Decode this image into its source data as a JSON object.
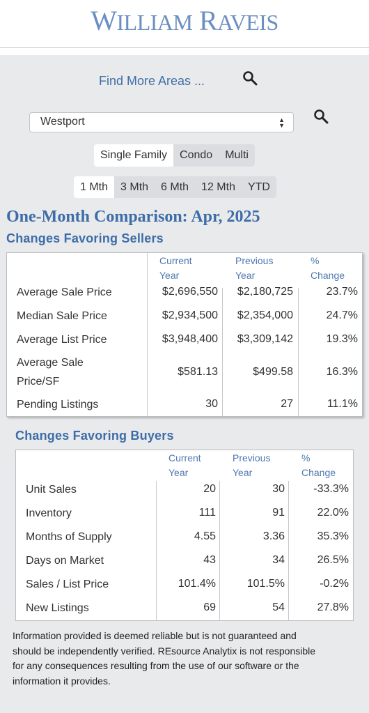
{
  "brand": {
    "logo_big1": "W",
    "logo_small1": "ILLIAM",
    "logo_big2": " R",
    "logo_small2": "AVEIS"
  },
  "search": {
    "find_more_link": "Find More Areas ...",
    "area_select_value": "Westport"
  },
  "property_types": [
    "Single Family",
    "Condo",
    "Multi"
  ],
  "property_type_selected": "Single Family",
  "periods": [
    "1 Mth",
    "3 Mth",
    "6 Mth",
    "12 Mth",
    "YTD"
  ],
  "period_selected": "1 Mth",
  "comparison_title": "One-Month Comparison:  Apr, 2025",
  "sellers": {
    "title": "Changes Favoring Sellers",
    "headers": [
      "Current",
      "Year",
      "Previous",
      "Year",
      "%",
      "Change"
    ],
    "rows": [
      {
        "label": "Average Sale Price",
        "current": "$2,696,550",
        "previous": "$2,180,725",
        "change": "23.7%"
      },
      {
        "label": "Median Sale Price",
        "current": "$2,934,500",
        "previous": "$2,354,000",
        "change": "24.7%"
      },
      {
        "label": "Average List Price",
        "current": "$3,948,400",
        "previous": "$3,309,142",
        "change": "19.3%"
      },
      {
        "label_line1": "Average Sale",
        "label_line2": "Price/SF",
        "current": "$581.13",
        "previous": "$499.58",
        "change": "16.3%"
      },
      {
        "label": "Pending Listings",
        "current": "30",
        "previous": "27",
        "change": "11.1%"
      }
    ]
  },
  "buyers": {
    "title": "Changes Favoring Buyers",
    "headers": [
      "Current",
      "Year",
      "Previous",
      "Year",
      "%",
      "Change"
    ],
    "rows": [
      {
        "label": "Unit Sales",
        "current": "20",
        "previous": "30",
        "change": "-33.3%"
      },
      {
        "label": "Inventory",
        "current": "111",
        "previous": "91",
        "change": "22.0%"
      },
      {
        "label": "Months of Supply",
        "current": "4.55",
        "previous": "3.36",
        "change": "35.3%"
      },
      {
        "label": "Days on Market",
        "current": "43",
        "previous": "34",
        "change": "26.5%"
      },
      {
        "label": "Sales / List Price",
        "current": "101.4%",
        "previous": "101.5%",
        "change": "-0.2%"
      },
      {
        "label": "New Listings",
        "current": "69",
        "previous": "54",
        "change": "27.8%"
      }
    ]
  },
  "disclaimer": "Information provided is deemed reliable but is not guaranteed and should be independently verified. REsource Analytix is not responsible for any consequences resulting from the use of our software or the information it provides.",
  "colors": {
    "brand_blue": "#6a8fc1",
    "heading_blue": "#3d6da8",
    "link_blue": "#3f6ea6",
    "background": "#e9eaec"
  },
  "icons": [
    "search-icon",
    "select-arrows-icon"
  ]
}
